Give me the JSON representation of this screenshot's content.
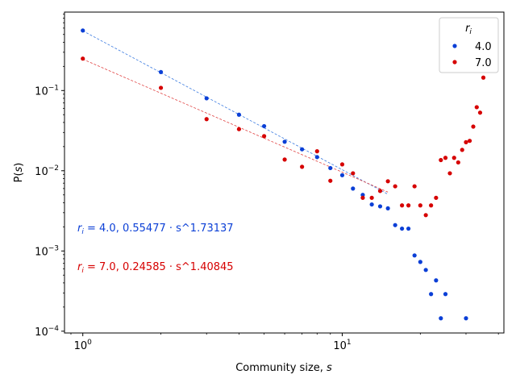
{
  "chart_data": {
    "type": "scatter",
    "xscale": "log",
    "yscale": "log",
    "xlim": [
      0.85,
      42
    ],
    "ylim": [
      9.5e-05,
      0.95
    ],
    "xlabel_main": "Community size, ",
    "xlabel_var": "s",
    "ylabel_main": "P(",
    "ylabel_var": "s",
    "ylabel_end": ")",
    "xticks": [
      {
        "value": 1,
        "base": "10",
        "exp": "0"
      },
      {
        "value": 10,
        "base": "10",
        "exp": "1"
      }
    ],
    "yticks": [
      {
        "value": 0.0001,
        "base": "10",
        "exp": "−4"
      },
      {
        "value": 0.001,
        "base": "10",
        "exp": "−3"
      },
      {
        "value": 0.01,
        "base": "10",
        "exp": "−2"
      },
      {
        "value": 0.1,
        "base": "10",
        "exp": "−1"
      }
    ],
    "legend": {
      "title_var": "r",
      "title_sub": "i",
      "placement": "top-right",
      "entries": [
        "4.0",
        "7.0"
      ]
    },
    "series": [
      {
        "name": "4.0",
        "color": "#0b3fd6",
        "fit_color": "#3b7be0",
        "fit": {
          "a": 0.55477,
          "b": 1.73137,
          "xrange": [
            1,
            15
          ]
        },
        "annotation": {
          "var": "r",
          "sub": "i",
          "text": " = 4.0, 0.55477 · s^1.73137"
        },
        "points": [
          [
            1,
            0.56
          ],
          [
            2,
            0.17
          ],
          [
            3,
            0.08
          ],
          [
            4,
            0.05
          ],
          [
            5,
            0.036
          ],
          [
            6,
            0.023
          ],
          [
            7,
            0.0185
          ],
          [
            8,
            0.0148
          ],
          [
            9,
            0.0108
          ],
          [
            10,
            0.0088
          ],
          [
            11,
            0.006
          ],
          [
            12,
            0.005
          ],
          [
            13,
            0.0038
          ],
          [
            14,
            0.0036
          ],
          [
            15,
            0.0034
          ],
          [
            16,
            0.0021
          ],
          [
            17,
            0.0019
          ],
          [
            18,
            0.0019
          ],
          [
            19,
            0.00088
          ],
          [
            20,
            0.00073
          ],
          [
            21,
            0.00058
          ],
          [
            22,
            0.00029
          ],
          [
            23,
            0.00043
          ],
          [
            24,
            0.000145
          ],
          [
            25,
            0.00029
          ],
          [
            30,
            0.000145
          ]
        ]
      },
      {
        "name": "7.0",
        "color": "#d60000",
        "fit_color": "#e04040",
        "fit": {
          "a": 0.24585,
          "b": 1.40845,
          "xrange": [
            1,
            15
          ]
        },
        "annotation": {
          "var": "r",
          "sub": "i",
          "text": " = 7.0, 0.24585 · s^1.40845"
        },
        "points": [
          [
            1,
            0.25
          ],
          [
            2,
            0.108
          ],
          [
            3,
            0.044
          ],
          [
            4,
            0.033
          ],
          [
            5,
            0.027
          ],
          [
            6,
            0.0138
          ],
          [
            7,
            0.0112
          ],
          [
            8,
            0.0175
          ],
          [
            9,
            0.0075
          ],
          [
            10,
            0.012
          ],
          [
            11,
            0.0093
          ],
          [
            12,
            0.0046
          ],
          [
            13,
            0.0046
          ],
          [
            14,
            0.0056
          ],
          [
            15,
            0.0074
          ],
          [
            16,
            0.0064
          ],
          [
            17,
            0.0037
          ],
          [
            18,
            0.0037
          ],
          [
            19,
            0.0064
          ],
          [
            20,
            0.0037
          ],
          [
            21,
            0.0028
          ],
          [
            22,
            0.0037
          ],
          [
            23,
            0.0046
          ],
          [
            24,
            0.0136
          ],
          [
            25,
            0.0145
          ],
          [
            26,
            0.0093
          ],
          [
            27,
            0.0145
          ],
          [
            28,
            0.0127
          ],
          [
            29,
            0.0182
          ],
          [
            30,
            0.0227
          ],
          [
            31,
            0.0236
          ],
          [
            32,
            0.0355
          ],
          [
            33,
            0.062
          ],
          [
            34,
            0.053
          ],
          [
            35,
            0.145
          ]
        ]
      }
    ]
  }
}
